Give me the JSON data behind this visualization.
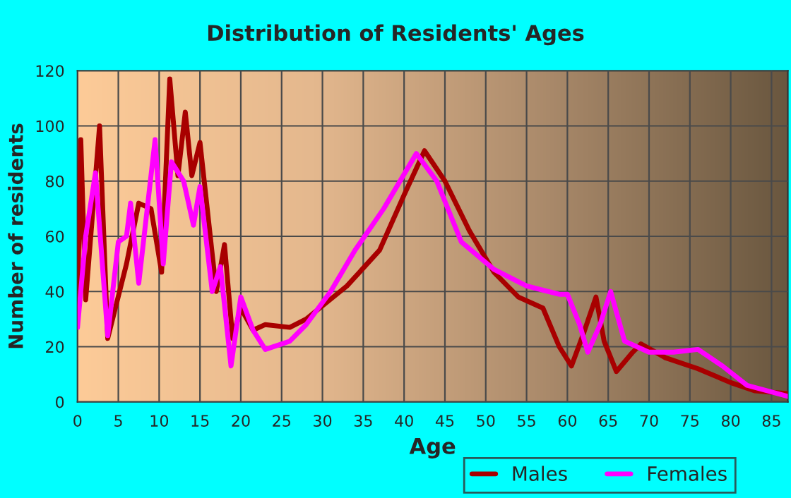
{
  "chart_data": {
    "type": "line",
    "title": "Distribution of Residents' Ages",
    "xlabel": "Age",
    "ylabel": "Number of residents",
    "xlim": [
      0,
      87
    ],
    "ylim": [
      0,
      120
    ],
    "xticks": [
      0,
      5,
      10,
      15,
      20,
      25,
      30,
      35,
      40,
      45,
      50,
      55,
      60,
      65,
      70,
      75,
      80,
      85
    ],
    "yticks": [
      0,
      20,
      40,
      60,
      80,
      100,
      120
    ],
    "grid": true,
    "legend": "bottom right",
    "series": [
      {
        "name": "Males",
        "color": "#a80000",
        "x": [
          0,
          0.4,
          1,
          2.7,
          3.7,
          6,
          7.5,
          9,
          10.3,
          11.3,
          12.3,
          13.2,
          14,
          15,
          17,
          18,
          19,
          20,
          21.5,
          23,
          26,
          28,
          33,
          37,
          40,
          42.5,
          45,
          48,
          51,
          54,
          57,
          59,
          60.5,
          62,
          63.5,
          64.5,
          66,
          68,
          69,
          72,
          76,
          80,
          83,
          87
        ],
        "values": [
          33,
          95,
          37,
          100,
          23,
          50,
          72,
          70,
          47,
          117,
          82,
          105,
          82,
          94,
          40,
          57,
          23,
          34,
          26,
          28,
          27,
          30,
          42,
          55,
          75,
          91,
          80,
          62,
          47,
          38,
          34,
          20,
          13,
          25,
          38,
          22,
          11,
          18,
          21,
          16,
          12,
          7,
          4,
          3
        ]
      },
      {
        "name": "Females",
        "color": "#ff00ff",
        "x": [
          0,
          1,
          2.2,
          3.7,
          5,
          6,
          6.5,
          7.5,
          9.5,
          10.5,
          11.5,
          13,
          14.2,
          15,
          16.5,
          17.5,
          18.8,
          20,
          21.5,
          23,
          26,
          28,
          31,
          34,
          37.5,
          41.5,
          44,
          47,
          51,
          55,
          59,
          60,
          61.5,
          62.5,
          64,
          65.3,
          67,
          70,
          73,
          76,
          79,
          82,
          87
        ],
        "values": [
          27,
          60,
          83,
          24,
          58,
          60,
          72,
          43,
          95,
          50,
          87,
          80,
          64,
          78,
          40,
          49,
          13,
          38,
          26,
          19,
          22,
          28,
          40,
          55,
          70,
          90,
          80,
          58,
          48,
          42,
          39,
          39,
          28,
          18,
          28,
          40,
          22,
          18,
          18,
          19,
          13,
          6,
          2
        ]
      }
    ]
  }
}
